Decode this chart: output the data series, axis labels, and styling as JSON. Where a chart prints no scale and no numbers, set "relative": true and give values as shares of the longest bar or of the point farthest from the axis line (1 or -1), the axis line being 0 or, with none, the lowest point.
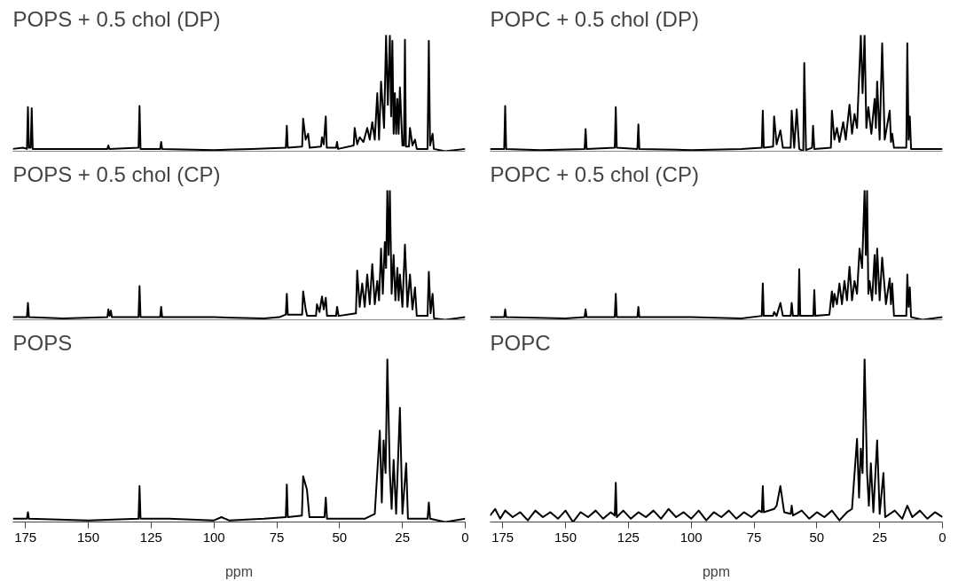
{
  "chart_data": [
    {
      "type": "line",
      "title": "POPS + 0.5 chol (DP)",
      "relative": true,
      "xlim": [
        180,
        0
      ],
      "tick_labels": false,
      "series": [
        {
          "color": "#000000",
          "x": [
            180,
            176,
            174.4,
            174,
            173.6,
            172.9,
            172.5,
            172.1,
            160,
            142.4,
            142,
            141.6,
            130,
            129.6,
            129.2,
            121.4,
            121,
            120.6,
            100,
            85,
            71.4,
            71,
            70.6,
            64.9,
            64.5,
            63.5,
            62.5,
            61.9,
            57.4,
            57,
            56.3,
            55.5,
            55.1,
            51.4,
            51,
            50.6,
            44.4,
            44,
            43,
            42,
            40.5,
            39,
            38,
            37,
            36,
            35,
            34.3,
            33.5,
            32.3,
            31.5,
            30.8,
            30,
            29.5,
            29,
            28.5,
            28,
            27.5,
            27,
            26.5,
            26,
            25,
            24.4,
            24,
            23.6,
            22.4,
            22,
            21,
            20,
            19.3,
            15,
            14.5,
            14,
            13,
            12.5,
            8,
            0
          ],
          "values": [
            0.02,
            0.03,
            0.02,
            0.38,
            0.03,
            0.03,
            0.37,
            0.02,
            0.02,
            0.02,
            0.05,
            0.02,
            0.03,
            0.39,
            0.02,
            0.02,
            0.08,
            0.02,
            0.01,
            0.02,
            0.03,
            0.22,
            0.03,
            0.04,
            0.28,
            0.1,
            0.15,
            0.03,
            0.04,
            0.12,
            0.06,
            0.3,
            0.03,
            0.03,
            0.08,
            0.02,
            0.05,
            0.2,
            0.06,
            0.12,
            0.08,
            0.2,
            0.1,
            0.25,
            0.1,
            0.5,
            0.1,
            0.6,
            0.2,
            1.0,
            0.4,
            1.0,
            0.3,
            0.95,
            0.15,
            0.5,
            0.15,
            0.45,
            0.15,
            0.55,
            0.05,
            0.05,
            0.96,
            0.04,
            0.04,
            0.2,
            0.05,
            0.1,
            0.02,
            0.02,
            0.95,
            0.05,
            0.15,
            0.02,
            0,
            0.02
          ]
        }
      ]
    },
    {
      "type": "line",
      "title": "POPC + 0.5 chol (DP)",
      "relative": true,
      "xlim": [
        180,
        0
      ],
      "tick_labels": false,
      "series": [
        {
          "color": "#000000",
          "x": [
            180,
            174.4,
            174,
            173.6,
            160,
            142.4,
            142,
            141.6,
            130.4,
            130,
            129.6,
            121.4,
            121,
            120.6,
            100,
            80,
            71.9,
            71.5,
            71.1,
            67.4,
            67,
            66,
            64.5,
            63.5,
            60.4,
            60,
            59,
            58,
            57,
            55.4,
            55,
            54.3,
            51.9,
            51.5,
            51,
            44.4,
            44,
            43,
            42,
            41,
            39.5,
            38.5,
            37,
            36,
            35,
            34,
            32.5,
            31.8,
            31,
            30.3,
            29.5,
            28.3,
            27,
            26.5,
            26,
            25,
            24,
            23,
            21,
            20.5,
            20,
            19.3,
            14.4,
            14,
            13.5,
            13,
            12.5,
            0
          ],
          "values": [
            0.02,
            0.02,
            0.39,
            0.02,
            0.01,
            0.02,
            0.19,
            0.02,
            0.03,
            0.38,
            0.03,
            0.02,
            0.23,
            0.02,
            0.01,
            0.02,
            0.03,
            0.35,
            0.03,
            0.04,
            0.3,
            0.06,
            0.18,
            0.03,
            0.03,
            0.35,
            0.03,
            0.36,
            0.02,
            0.0,
            0.76,
            0.01,
            0.03,
            0.22,
            0.02,
            0.03,
            0.35,
            0.1,
            0.2,
            0.08,
            0.25,
            0.1,
            0.4,
            0.15,
            0.32,
            0.2,
            1.0,
            0.5,
            1.0,
            0.2,
            0.38,
            0.15,
            0.45,
            0.2,
            0.6,
            0.1,
            0.93,
            0.1,
            0.35,
            0.08,
            0.15,
            0.03,
            0.03,
            0.93,
            0.1,
            0.3,
            0.02,
            0.02
          ]
        }
      ]
    },
    {
      "type": "line",
      "title": "POPS + 0.5 chol (CP)",
      "relative": true,
      "xlim": [
        180,
        0
      ],
      "tick_labels": false,
      "series": [
        {
          "color": "#000000",
          "x": [
            180,
            174.4,
            174,
            173.6,
            160,
            142.4,
            142,
            141.5,
            141,
            140.6,
            130,
            129.6,
            129.2,
            121.4,
            121,
            120.6,
            100,
            80,
            74,
            71.4,
            71,
            70.6,
            64.9,
            64.5,
            63.5,
            62.9,
            59.4,
            59,
            58,
            57,
            56.3,
            55.5,
            55,
            51.4,
            51,
            50.4,
            43.5,
            43,
            42,
            41,
            40,
            39,
            38,
            37,
            36,
            35,
            34.3,
            33.5,
            32.8,
            32,
            31.5,
            31,
            30.5,
            30,
            29.3,
            28.5,
            27.8,
            27,
            26.5,
            26,
            25,
            24,
            23,
            22,
            21,
            20,
            19.3,
            15,
            14.5,
            13.8,
            13,
            12.4,
            8,
            0
          ],
          "values": [
            0.02,
            0.02,
            0.13,
            0.02,
            0.01,
            0.02,
            0.08,
            0.03,
            0.07,
            0.02,
            0.02,
            0.26,
            0.02,
            0.02,
            0.1,
            0.02,
            0.02,
            0.01,
            0.02,
            0.04,
            0.2,
            0.04,
            0.04,
            0.22,
            0.08,
            0.03,
            0.03,
            0.12,
            0.06,
            0.18,
            0.08,
            0.17,
            0.03,
            0.03,
            0.1,
            0.03,
            0.05,
            0.38,
            0.1,
            0.28,
            0.1,
            0.35,
            0.12,
            0.43,
            0.12,
            0.3,
            0.15,
            0.55,
            0.2,
            0.6,
            0.4,
            1.0,
            0.5,
            1.0,
            0.2,
            0.5,
            0.15,
            0.4,
            0.15,
            0.35,
            0.1,
            0.58,
            0.1,
            0.35,
            0.08,
            0.25,
            0.03,
            0.03,
            0.37,
            0.05,
            0.2,
            0.01,
            0,
            0.02
          ]
        }
      ]
    },
    {
      "type": "line",
      "title": "POPC + 0.5 chol (CP)",
      "relative": true,
      "xlim": [
        180,
        0
      ],
      "tick_labels": false,
      "series": [
        {
          "color": "#000000",
          "x": [
            180,
            174.4,
            174,
            173.6,
            150,
            142.4,
            142,
            141.6,
            130.4,
            130,
            129.6,
            121.4,
            121,
            120.6,
            100,
            80,
            71.9,
            71.5,
            71.1,
            67.4,
            67,
            66,
            64.5,
            63.5,
            60.4,
            60,
            59.5,
            57.4,
            57,
            56.6,
            51.4,
            51,
            50.6,
            45,
            44,
            43.5,
            43,
            42,
            41,
            40,
            39,
            38,
            37,
            36,
            35,
            34,
            33,
            32,
            31,
            30.5,
            30,
            29.5,
            29,
            28,
            27,
            26.5,
            26,
            25,
            24,
            22.5,
            21,
            20.5,
            20,
            19.3,
            14.4,
            14,
            13.5,
            13,
            12.5,
            8,
            0
          ],
          "values": [
            0.02,
            0.02,
            0.08,
            0.02,
            0.01,
            0.02,
            0.08,
            0.02,
            0.02,
            0.2,
            0.02,
            0.02,
            0.1,
            0.02,
            0.02,
            0.01,
            0.03,
            0.28,
            0.03,
            0.03,
            0.06,
            0.03,
            0.13,
            0.03,
            0.03,
            0.13,
            0.03,
            0.03,
            0.39,
            0.03,
            0.03,
            0.23,
            0.03,
            0.04,
            0.22,
            0.1,
            0.2,
            0.12,
            0.28,
            0.12,
            0.3,
            0.15,
            0.41,
            0.15,
            0.3,
            0.2,
            0.55,
            0.4,
            1.0,
            0.5,
            1.0,
            0.2,
            0.3,
            0.15,
            0.5,
            0.2,
            0.55,
            0.15,
            0.48,
            0.12,
            0.32,
            0.12,
            0.28,
            0.03,
            0.03,
            0.35,
            0.1,
            0.25,
            0.02,
            0,
            0.02
          ]
        }
      ]
    },
    {
      "type": "line",
      "title": "POPS",
      "relative": true,
      "xlim": [
        180,
        0
      ],
      "xticks": [
        175,
        150,
        125,
        100,
        75,
        50,
        25,
        0
      ],
      "xlabel": "ppm",
      "tick_labels": "x",
      "series": [
        {
          "color": "#000000",
          "x": [
            180,
            174.4,
            174,
            173.6,
            150,
            130,
            129.6,
            129.2,
            118,
            100,
            97,
            94,
            80,
            71.4,
            71,
            70.6,
            65,
            64.5,
            63,
            62,
            56,
            55.5,
            55,
            40,
            36,
            34,
            33.2,
            32.5,
            31.7,
            31,
            30,
            29.3,
            28.5,
            27.5,
            26,
            25,
            23.5,
            22.8,
            15,
            14.5,
            14,
            8,
            0
          ],
          "values": [
            0.02,
            0.02,
            0.06,
            0.02,
            0.01,
            0.02,
            0.22,
            0.02,
            0.02,
            0.01,
            0.03,
            0.01,
            0.02,
            0.03,
            0.23,
            0.03,
            0.04,
            0.28,
            0.2,
            0.03,
            0.03,
            0.15,
            0.02,
            0.02,
            0.05,
            0.56,
            0.12,
            0.5,
            0.3,
            1.0,
            0.3,
            0.08,
            0.38,
            0.05,
            0.7,
            0.05,
            0.36,
            0.02,
            0.02,
            0.12,
            0.02,
            0,
            0.02
          ]
        }
      ]
    },
    {
      "type": "line",
      "title": "POPC",
      "relative": true,
      "xlim": [
        180,
        0
      ],
      "xticks": [
        175,
        150,
        125,
        100,
        75,
        50,
        25,
        0
      ],
      "xlabel": "ppm",
      "tick_labels": "x",
      "series": [
        {
          "color": "#000000",
          "x": [
            180,
            178,
            176,
            174,
            171,
            168,
            165,
            162,
            159,
            156,
            153,
            150,
            147,
            144,
            141,
            138,
            135,
            132,
            130.4,
            130,
            129.6,
            127,
            124,
            121,
            118,
            115,
            112,
            109,
            106,
            103,
            100,
            97,
            94,
            91,
            88,
            85,
            82,
            79,
            76,
            73,
            71.9,
            71.5,
            71.1,
            67,
            66,
            64.5,
            63,
            60.4,
            60,
            59.5,
            56,
            53,
            50,
            47,
            44,
            41,
            38,
            36,
            34,
            33.2,
            32.5,
            31.8,
            31,
            30,
            29.3,
            28.5,
            27.5,
            26,
            25,
            23.5,
            22.8,
            19,
            16,
            14,
            12,
            9,
            6,
            3,
            0
          ],
          "values": [
            0.04,
            0.08,
            0.02,
            0.07,
            0.03,
            0.06,
            0.01,
            0.07,
            0.03,
            0.06,
            0.02,
            0.07,
            0.0,
            0.06,
            0.03,
            0.07,
            0.02,
            0.06,
            0.04,
            0.24,
            0.03,
            0.07,
            0.02,
            0.06,
            0.03,
            0.07,
            0.02,
            0.08,
            0.03,
            0.06,
            0.02,
            0.07,
            0.01,
            0.06,
            0.03,
            0.07,
            0.02,
            0.06,
            0.03,
            0.07,
            0.06,
            0.22,
            0.06,
            0.08,
            0.1,
            0.22,
            0.06,
            0.05,
            0.1,
            0.04,
            0.07,
            0.02,
            0.06,
            0.03,
            0.07,
            0.01,
            0.06,
            0.08,
            0.51,
            0.15,
            0.45,
            0.3,
            1.0,
            0.3,
            0.1,
            0.36,
            0.06,
            0.5,
            0.05,
            0.3,
            0.03,
            0.07,
            0.02,
            0.1,
            0.03,
            0.07,
            0.02,
            0.06,
            0.03
          ]
        }
      ]
    }
  ]
}
